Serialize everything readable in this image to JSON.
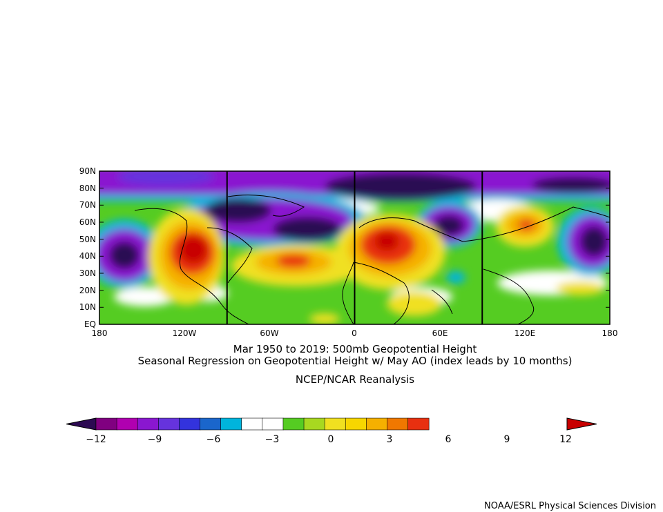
{
  "titles": {
    "line1": "Mar 1950 to 2019: 500mb Geopotential Height",
    "line2": "Seasonal Regression on Geopotential Height  w/ May AO (index leads by 10 months)",
    "source": "NCEP/NCAR Reanalysis",
    "credit": "NOAA/ESRL Physical Sciences Division"
  },
  "map": {
    "projection": "cylindrical equidistant",
    "lon_range": [
      -180,
      180
    ],
    "lat_range": [
      0,
      90
    ],
    "lat_labels": [
      "90N",
      "80N",
      "70N",
      "60N",
      "50N",
      "40N",
      "30N",
      "20N",
      "10N",
      "EQ"
    ],
    "lon_labels": [
      "180",
      "120W",
      "60W",
      "0",
      "60E",
      "120E",
      "180"
    ],
    "meridian_guides": [
      "-90",
      "0",
      "90"
    ],
    "features": [
      {
        "name": "western-us-max",
        "lon": -125,
        "lat": 43,
        "value": 12
      },
      {
        "name": "atlantic-ridge",
        "lon": -35,
        "lat": 37,
        "value": 10
      },
      {
        "name": "europe-max",
        "lon": 25,
        "lat": 50,
        "value": 12
      },
      {
        "name": "siberia-ridge",
        "lon": 118,
        "lat": 58,
        "value": 9
      },
      {
        "name": "gulf-alaska-low",
        "lon": -165,
        "lat": 40,
        "value": -12
      },
      {
        "name": "canada-low",
        "lon": -72,
        "lat": 63,
        "value": -10
      },
      {
        "name": "greenland-low",
        "lon": -25,
        "lat": 57,
        "value": -11
      },
      {
        "name": "arctic-low-atlantic",
        "lon": 30,
        "lat": 80,
        "value": -11
      },
      {
        "name": "ural-low",
        "lon": 62,
        "lat": 59,
        "value": -11
      },
      {
        "name": "kamchatka-low",
        "lon": 165,
        "lat": 50,
        "value": -11
      },
      {
        "name": "arctic-low-pacific",
        "lon": -140,
        "lat": 85,
        "value": -8
      }
    ]
  },
  "colorbar": {
    "tick_labels": [
      "−12",
      "−9",
      "−6",
      "−3",
      "0",
      "3",
      "6",
      "9",
      "12"
    ],
    "colors": [
      "#2c0a52",
      "#800080",
      "#b000b0",
      "#8a17d0",
      "#6633dd",
      "#3333dd",
      "#1a66cc",
      "#00b4dc",
      "#ffffff",
      "#ffffff",
      "#55cc22",
      "#a8d820",
      "#f0e020",
      "#f7d600",
      "#f5b000",
      "#f07800",
      "#e83010",
      "#c80000"
    ]
  }
}
